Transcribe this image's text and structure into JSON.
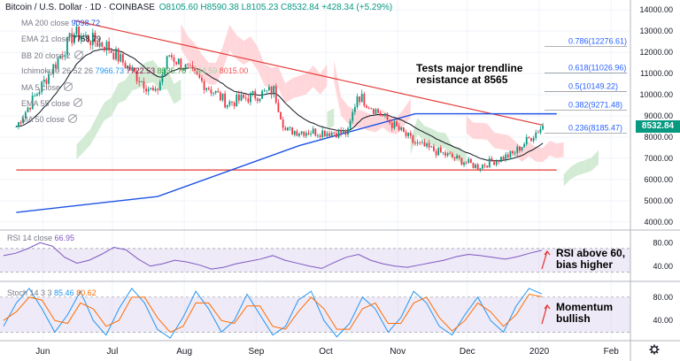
{
  "header": {
    "title": "Bitcoin / U.S. Dollar · 1D · COINBASE",
    "ohlc": "O8105.60  H8590.38  L8105.23  C8532.84  +428.34 (+5.29%)"
  },
  "indicators": [
    {
      "name": "MA 200 close",
      "values": [
        "9098.72"
      ],
      "colors": [
        "#1e53e5"
      ]
    },
    {
      "name": "EMA 21 close",
      "values": [
        "7758.79"
      ],
      "colors": [
        "#131722"
      ]
    },
    {
      "name": "BB 20 close 2",
      "values": [],
      "colors": [],
      "hidden": true
    },
    {
      "name": "Ichimoku 9 26 52 26",
      "values": [
        "7966.73",
        "7722.53",
        "8535.78",
        "7044.59",
        "8015.00"
      ],
      "colors": [
        "#2196f3",
        "#880e4f",
        "#43a047",
        "#a5d6a7",
        "#ef5350"
      ]
    },
    {
      "name": "MA 5 close",
      "values": [],
      "colors": [],
      "hidden": true
    },
    {
      "name": "EMA 55 close",
      "values": [],
      "colors": [],
      "hidden": true
    },
    {
      "name": "MA 50 close",
      "values": [],
      "colors": [],
      "hidden": true
    }
  ],
  "annotations": {
    "trendline": [
      "Tests major trendline",
      "resistance at 8565"
    ],
    "rsi": [
      "RSI above 60,",
      "bias higher"
    ],
    "stoch": [
      "Momentum",
      "bullish"
    ]
  },
  "last_price": "8532.84",
  "colors": {
    "up": "#089981",
    "down": "#f23645",
    "ma200": "#1e53e5",
    "ema21": "#131722",
    "kumo_bull": "#c8e6c9",
    "kumo_bear": "#ffcdd2",
    "trendline": "#e53935",
    "rsi": "#7e57c2",
    "stoch_k": "#2196f3",
    "stoch_d": "#ff6d00",
    "fib": "#2962ff"
  },
  "chart_data": [
    {
      "type": "candlestick",
      "title": "Bitcoin / U.S. Dollar · 1D · COINBASE",
      "x_ticks": [
        "Jun",
        "Jul",
        "Aug",
        "Sep",
        "Oct",
        "Nov",
        "Dec",
        "2020",
        "Feb"
      ],
      "y_ticks": [
        4000,
        5000,
        6000,
        7000,
        8000,
        9000,
        10000,
        11000,
        12000,
        13000,
        14000
      ],
      "ylim": [
        3700,
        14300
      ],
      "monthly_path": [
        [
          "2019-06-01",
          8500
        ],
        [
          "2019-06-26",
          12900
        ],
        [
          "2019-07-10",
          12300
        ],
        [
          "2019-07-31",
          10000
        ],
        [
          "2019-08-06",
          11900
        ],
        [
          "2019-08-31",
          9600
        ],
        [
          "2019-09-20",
          10200
        ],
        [
          "2019-09-25",
          8300
        ],
        [
          "2019-10-22",
          8200
        ],
        [
          "2019-10-26",
          10000
        ],
        [
          "2019-11-20",
          7700
        ],
        [
          "2019-12-17",
          6600
        ],
        [
          "2020-01-01",
          7200
        ],
        [
          "2020-01-14",
          8532.84
        ]
      ],
      "fib_levels": [
        {
          "label": "0.236(8185.47)",
          "value": 8185.47
        },
        {
          "label": "0.382(9271.48)",
          "value": 9271.48
        },
        {
          "label": "0.5(10149.22)",
          "value": 10149.22
        },
        {
          "label": "0.618(11026.96)",
          "value": 11026.96
        },
        {
          "label": "0.786(12276.61)",
          "value": 12276.61
        }
      ],
      "trendlines": [
        {
          "name": "resistance",
          "from": [
            "2019-06-26",
            13500
          ],
          "to": [
            "2020-01-14",
            8565
          ]
        },
        {
          "name": "support",
          "from": [
            "2019-06-01",
            6450
          ],
          "to": [
            "2020-01-20",
            6450
          ]
        }
      ],
      "ma200": [
        [
          "2019-06-01",
          4450
        ],
        [
          "2019-08-01",
          5200
        ],
        [
          "2019-10-01",
          7600
        ],
        [
          "2019-11-20",
          9100
        ],
        [
          "2020-01-20",
          9098.72
        ]
      ],
      "ema21_last": 7758.79,
      "last_close": 8532.84
    },
    {
      "type": "line",
      "name": "RSI 14 close",
      "value": "66.95",
      "y_ticks": [
        40.0,
        80.0
      ],
      "ylim": [
        17,
        97
      ],
      "band": [
        30,
        70
      ],
      "series": [
        {
          "name": "RSI 14 close",
          "values": [
            58,
            62,
            70,
            80,
            74,
            55,
            45,
            50,
            60,
            72,
            68,
            52,
            40,
            44,
            50,
            47,
            42,
            35,
            38,
            44,
            48,
            52,
            58,
            50,
            45,
            40,
            36,
            46,
            55,
            60,
            50,
            44,
            40,
            38,
            42,
            46,
            50,
            56,
            60,
            58,
            55,
            52,
            56,
            62,
            66.95
          ]
        }
      ]
    },
    {
      "type": "line",
      "name": "Stoch 14 3 3",
      "values_shown": [
        "85.46",
        "80.62"
      ],
      "y_ticks": [
        40.0,
        80.0
      ],
      "ylim": [
        10,
        104
      ],
      "band": [
        20,
        80
      ],
      "series": [
        {
          "name": "%K",
          "values": [
            30,
            70,
            95,
            60,
            20,
            50,
            90,
            40,
            15,
            60,
            95,
            70,
            25,
            10,
            45,
            90,
            60,
            20,
            40,
            85,
            50,
            15,
            30,
            75,
            90,
            40,
            12,
            35,
            80,
            60,
            20,
            45,
            90,
            70,
            30,
            15,
            50,
            80,
            40,
            20,
            65,
            95,
            85.46
          ]
        },
        {
          "name": "%D",
          "values": [
            40,
            55,
            80,
            75,
            40,
            35,
            70,
            60,
            30,
            40,
            80,
            80,
            45,
            20,
            30,
            70,
            70,
            40,
            35,
            65,
            65,
            30,
            25,
            55,
            80,
            60,
            25,
            25,
            60,
            70,
            35,
            35,
            70,
            80,
            45,
            22,
            40,
            70,
            55,
            30,
            50,
            85,
            80.62
          ]
        }
      ]
    }
  ]
}
